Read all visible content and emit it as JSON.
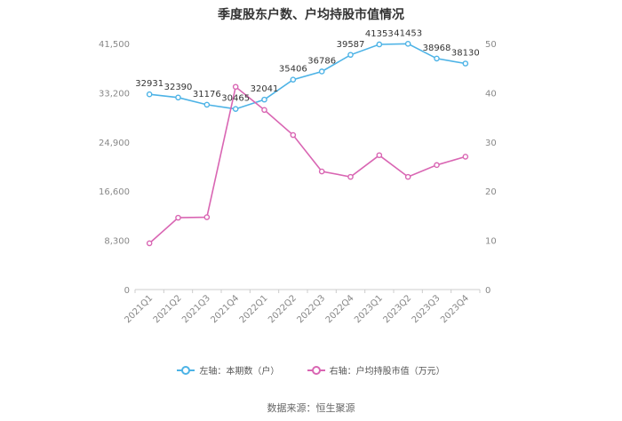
{
  "chart_data": {
    "type": "line",
    "title": "季度股东户数、户均持股市值情况",
    "categories": [
      "2021Q1",
      "2021Q2",
      "2021Q3",
      "2021Q4",
      "2022Q1",
      "2022Q2",
      "2022Q3",
      "2022Q4",
      "2023Q1",
      "2023Q2",
      "2023Q3",
      "2023Q4"
    ],
    "y_left": {
      "min": 0,
      "max": 41500,
      "ticks": [
        0,
        8300,
        16600,
        24900,
        33200,
        41500
      ],
      "tick_labels": [
        "0",
        "8,300",
        "16,600",
        "24,900",
        "33,200",
        "41,500"
      ]
    },
    "y_right": {
      "min": 0,
      "max": 50,
      "ticks": [
        0,
        10,
        20,
        30,
        40,
        50
      ],
      "tick_labels": [
        "0",
        "10",
        "20",
        "30",
        "40",
        "50"
      ]
    },
    "series": [
      {
        "name": "左轴：本期数（户）",
        "axis": "left",
        "color": "#4db3e6",
        "values": [
          32931,
          32390,
          31176,
          30465,
          32041,
          35406,
          36786,
          39587,
          41353,
          41453,
          38968,
          38130
        ],
        "labels": [
          "32931",
          "32390",
          "31176",
          "30465",
          "32041",
          "35406",
          "36786",
          "39587",
          "41353",
          "41453",
          "38968",
          "38130"
        ]
      },
      {
        "name": "右轴：户均持股市值（万元）",
        "axis": "right",
        "color": "#d966b3",
        "values": [
          9.4,
          14.6,
          14.7,
          41.2,
          36.5,
          31.4,
          24.0,
          22.9,
          27.3,
          22.9,
          25.3,
          27.0
        ]
      }
    ],
    "legend_position": "bottom",
    "grid": false
  },
  "source": "数据来源：恒生聚源"
}
